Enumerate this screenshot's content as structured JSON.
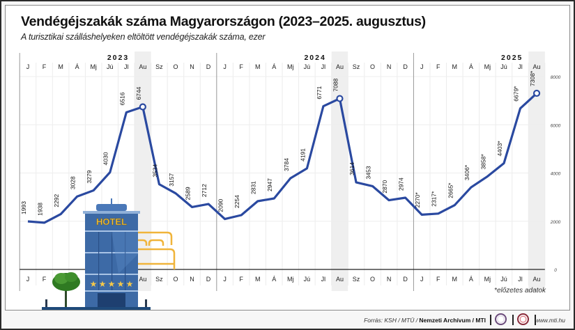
{
  "title": "Vendégéjszakák száma Magyarországon (2023–2025. augusztus)",
  "subtitle": "A turisztikai szálláshelyeken eltöltött vendégéjszakák száma, ezer",
  "footnote": "*előzetes adatok",
  "footer": {
    "source_prefix": "Forrás: KSH / MTÜ / ",
    "source_bold": "Nemzeti Archívum / MTI",
    "url": "www.mti.hu",
    "logos": [
      "mtva-logo-icon",
      "mti-logo-icon"
    ]
  },
  "illustration": {
    "hotel_sign": "HOTEL",
    "stars": 5
  },
  "colors": {
    "line": "#2a49a0",
    "highlight_column": "#efefef",
    "bed": "#f0b43a",
    "hotel": "#3d6aa6"
  },
  "chart_data": {
    "type": "line",
    "title": "Vendégéjszakák száma Magyarországon (2023–2025. augusztus)",
    "subtitle": "A turisztikai szálláshelyeken eltöltött vendégéjszakák száma, ezer",
    "xlabel": "",
    "ylabel": "ezer",
    "ylim": [
      0,
      8000
    ],
    "yticks": [
      0,
      2000,
      4000,
      6000,
      8000
    ],
    "grid": true,
    "years": [
      {
        "label": "2023",
        "months": [
          "J",
          "F",
          "M",
          "Á",
          "Mj",
          "Jú",
          "Jl",
          "Au",
          "Sz",
          "O",
          "N",
          "D"
        ]
      },
      {
        "label": "2024",
        "months": [
          "J",
          "F",
          "M",
          "Á",
          "Mj",
          "Jú",
          "Jl",
          "Au",
          "Sz",
          "O",
          "N",
          "D"
        ]
      },
      {
        "label": "2025",
        "months": [
          "J",
          "F",
          "M",
          "Á",
          "Mj",
          "Jú",
          "Jl",
          "Au"
        ]
      }
    ],
    "highlighted_months": [
      "2023-Au",
      "2024-Au",
      "2025-Au"
    ],
    "series": [
      {
        "name": "Vendégéjszakák (ezer)",
        "values": [
          1993,
          1938,
          2292,
          3028,
          3279,
          4030,
          6516,
          6744,
          3534,
          3157,
          2589,
          2712,
          2090,
          2254,
          2831,
          2947,
          3784,
          4191,
          6771,
          7088,
          3614,
          3453,
          2870,
          2974,
          2270,
          2317,
          2665,
          3406,
          3858,
          4403,
          6679,
          7308
        ],
        "labels": [
          "1993",
          "1938",
          "2292",
          "3028",
          "3279",
          "4030",
          "6516",
          "6744",
          "3534",
          "3157",
          "2589",
          "2712",
          "2090",
          "2254",
          "2831",
          "2947",
          "3784",
          "4191",
          "6771",
          "7088",
          "3614",
          "3453",
          "2870",
          "2974",
          "2270*",
          "2317*",
          "2665*",
          "3406*",
          "3858*",
          "4403*",
          "6679*",
          "7308*"
        ]
      }
    ]
  }
}
